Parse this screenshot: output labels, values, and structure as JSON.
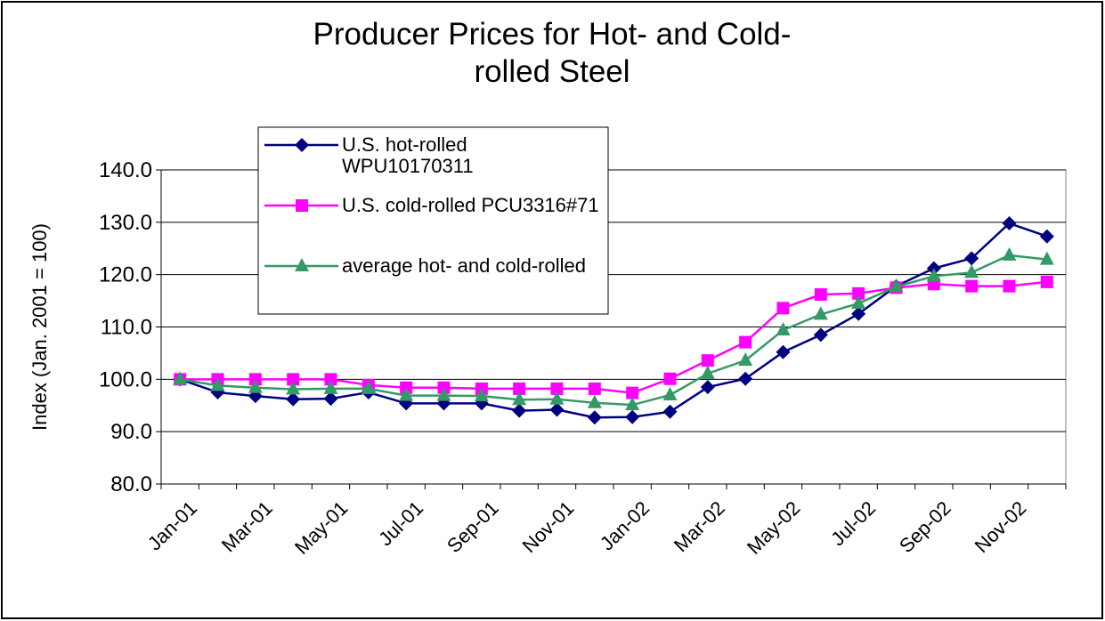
{
  "chart_data": {
    "type": "line",
    "title": "Producer Prices for Hot- and Cold-rolled Steel",
    "y_label": "Index (Jan. 2001 = 100)",
    "categories": [
      "Jan-01",
      null,
      "Mar-01",
      null,
      "May-01",
      null,
      "Jul-01",
      null,
      "Sep-01",
      null,
      "Nov-01",
      null,
      "Jan-02",
      null,
      "Mar-02",
      null,
      "May-02",
      null,
      "Jul-02",
      null,
      "Sep-02",
      null,
      "Nov-02",
      null
    ],
    "series": [
      {
        "name": "U.S. hot-rolled WPU10170311",
        "color": "#000080",
        "marker": "diamond",
        "values": [
          100,
          97.5,
          96.8,
          96.2,
          96.3,
          97.5,
          95.4,
          95.4,
          95.4,
          94.0,
          94.2,
          92.7,
          92.8,
          93.8,
          98.5,
          100.1,
          105.2,
          108.5,
          112.5,
          117.8,
          121.2,
          123.1,
          129.8,
          127.3
        ]
      },
      {
        "name": "U.S. cold-rolled PCU3316#71",
        "color": "#ff00ff",
        "marker": "square",
        "values": [
          100,
          100,
          100,
          100,
          100,
          98.9,
          98.4,
          98.4,
          98.2,
          98.2,
          98.2,
          98.2,
          97.4,
          100.1,
          103.6,
          107.1,
          113.6,
          116.2,
          116.4,
          117.5,
          118.2,
          117.8,
          117.8,
          118.6
        ]
      },
      {
        "name": "average hot- and cold-rolled",
        "color": "#339966",
        "marker": "triangle",
        "values": [
          100,
          98.8,
          98.4,
          98.1,
          98.2,
          98.2,
          96.9,
          96.9,
          96.8,
          96.1,
          96.2,
          95.5,
          95.1,
          97.0,
          101.1,
          103.6,
          109.4,
          112.4,
          114.5,
          117.7,
          119.7,
          120.4,
          123.7,
          122.9
        ]
      }
    ],
    "ylim": [
      80,
      140
    ],
    "yticks": [
      {
        "value": 80,
        "label": "80.0"
      },
      {
        "value": 90,
        "label": "90.0"
      },
      {
        "value": 100,
        "label": "100.0"
      },
      {
        "value": 110,
        "label": "110.0"
      },
      {
        "value": 120,
        "label": "120.0"
      },
      {
        "value": 130,
        "label": "130.0"
      },
      {
        "value": 140,
        "label": "140.0"
      }
    ],
    "grid": true,
    "legend": "top-left"
  }
}
